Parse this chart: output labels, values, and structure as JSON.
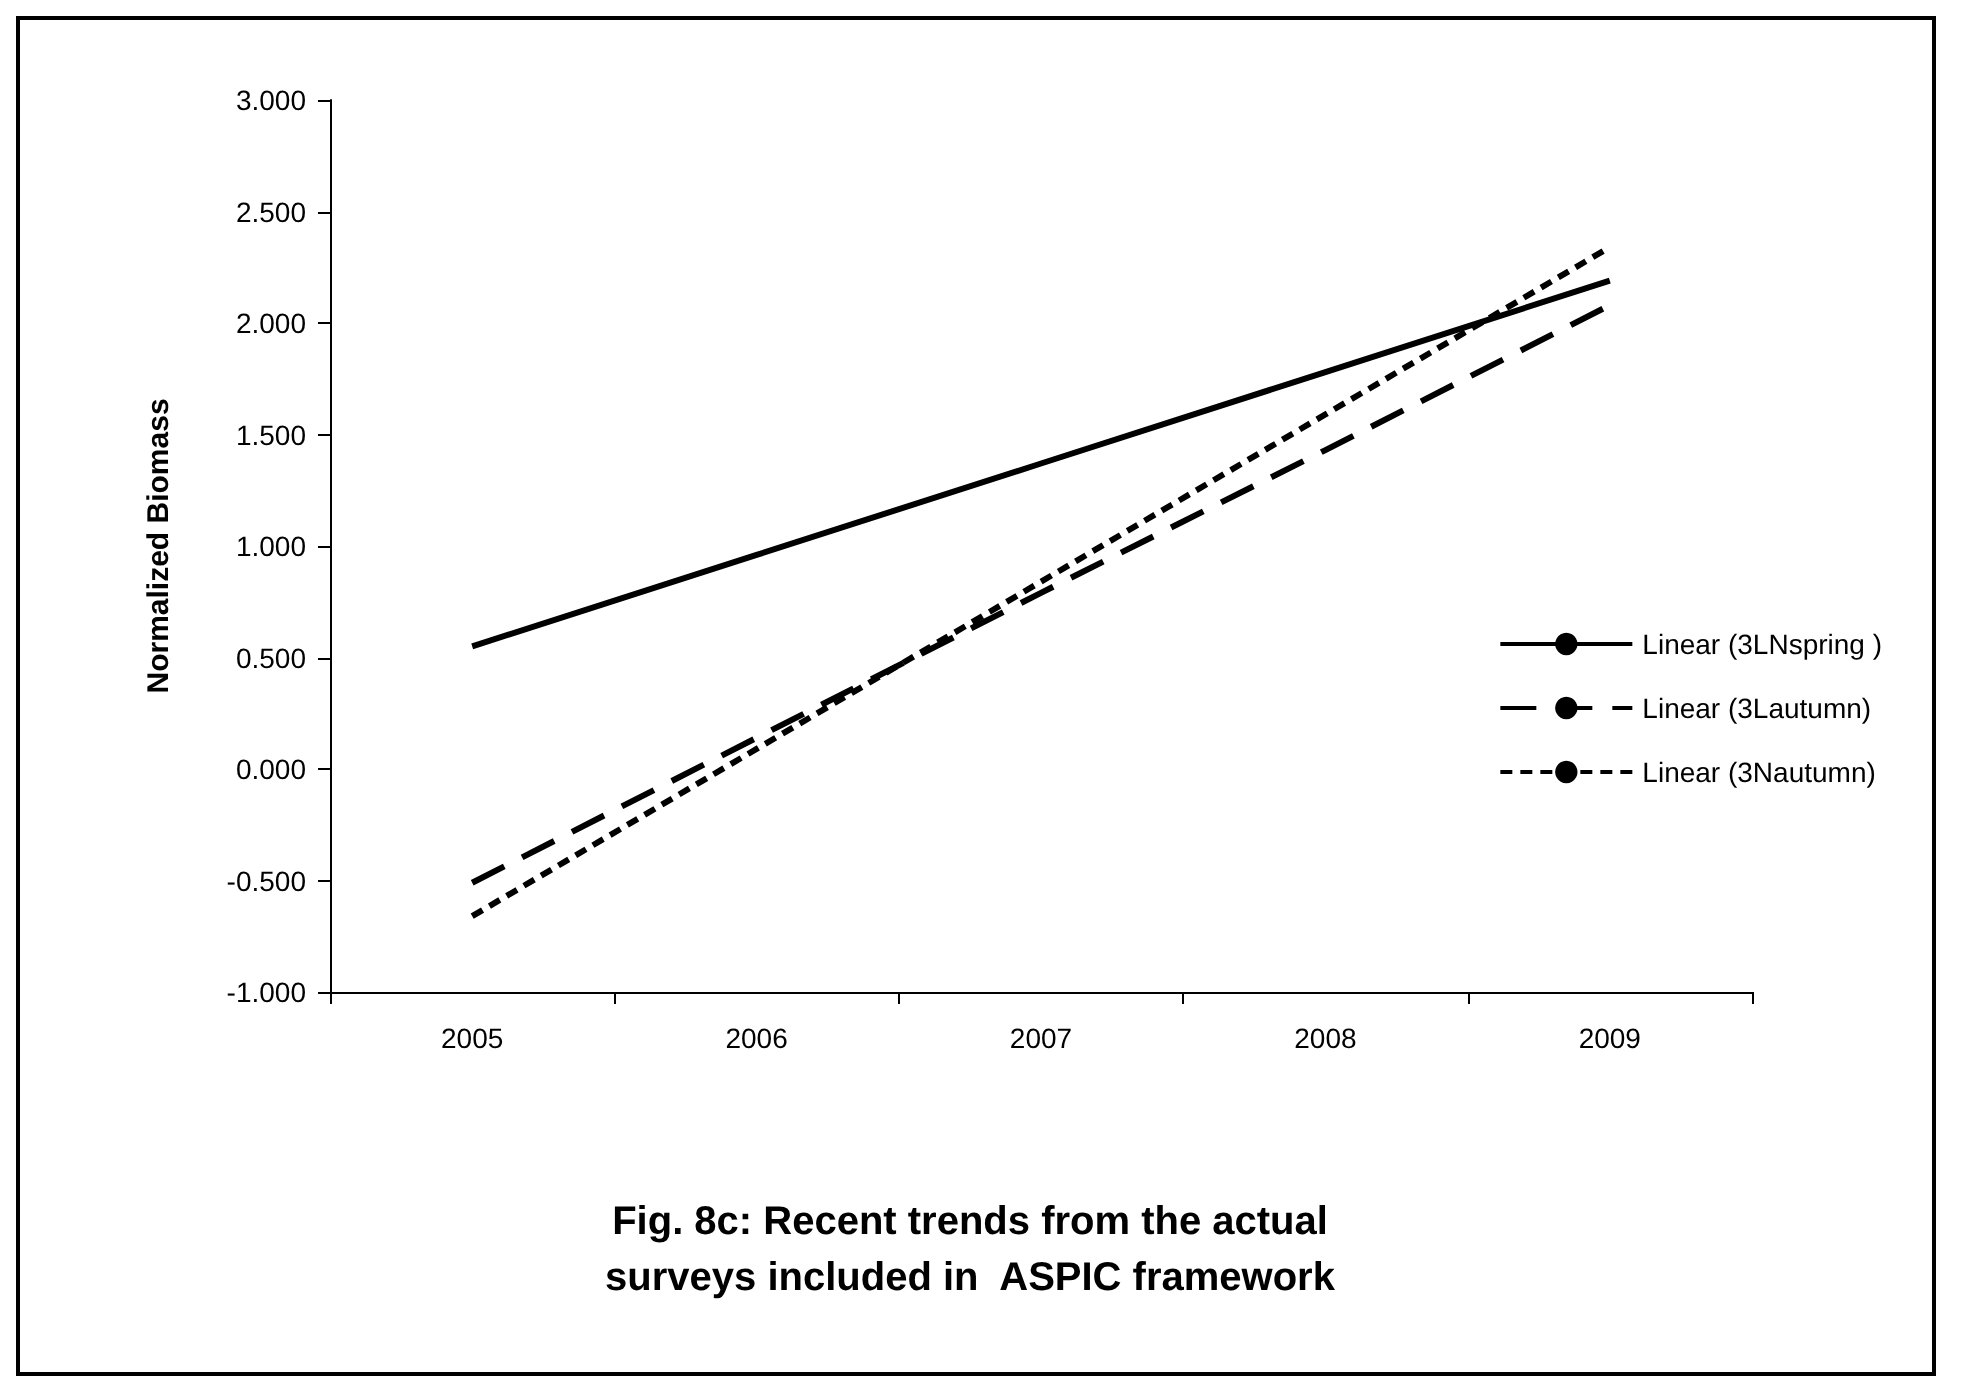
{
  "chart_data": {
    "type": "line",
    "title": "Fig. 8c: Recent trends from the actual\nsurveys included in  ASPIC framework",
    "ylabel": "Normalized Biomass",
    "categories": [
      "2005",
      "2006",
      "2007",
      "2008",
      "2009"
    ],
    "series": [
      {
        "name": "Linear (3LNspring )",
        "color": "#000000",
        "line_style": "solid",
        "values": [
          0.55,
          0.96,
          1.37,
          1.78,
          2.19
        ]
      },
      {
        "name": "Linear (3Lautumn)",
        "color": "#000000",
        "line_style": "dashed",
        "values": [
          -0.51,
          0.14,
          0.79,
          1.43,
          2.08
        ]
      },
      {
        "name": "Linear (3Nautumn)",
        "color": "#000000",
        "line_style": "dotted",
        "values": [
          -0.66,
          0.09,
          0.84,
          1.59,
          2.34
        ]
      }
    ],
    "ylim": [
      -1,
      3
    ],
    "yticks": [
      {
        "value": -1,
        "label": "-1.000"
      },
      {
        "value": -0.5,
        "label": "-0.500"
      },
      {
        "value": 0,
        "label": "0.000"
      },
      {
        "value": 0.5,
        "label": "0.500"
      },
      {
        "value": 1,
        "label": "1.000"
      },
      {
        "value": 1.5,
        "label": "1.500"
      },
      {
        "value": 2,
        "label": "2.000"
      },
      {
        "value": 2.5,
        "label": "2.500"
      },
      {
        "value": 3,
        "label": "3.000"
      }
    ],
    "grid": false,
    "legend": "right",
    "marker": "none"
  }
}
